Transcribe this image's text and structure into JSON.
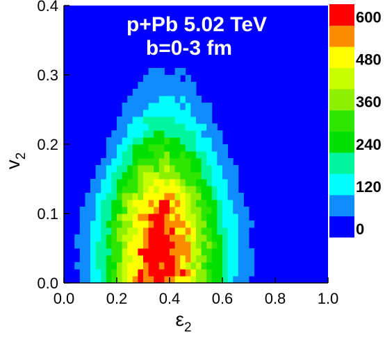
{
  "chart_data": {
    "type": "heatmap",
    "annotation": [
      "p+Pb 5.02 TeV",
      "b=0-3 fm"
    ],
    "xlabel": {
      "main": "ε",
      "sub": "2"
    },
    "ylabel": {
      "main": "v",
      "sub": "2"
    },
    "xlim": [
      0.0,
      1.0
    ],
    "ylim": [
      0.0,
      0.4
    ],
    "xticks": [
      "0.0",
      "0.2",
      "0.4",
      "0.6",
      "0.8",
      "1.0"
    ],
    "yticks": [
      "0.0",
      "0.1",
      "0.2",
      "0.3",
      "0.4"
    ],
    "colorbar": {
      "ticks": [
        "0",
        "120",
        "240",
        "360",
        "480",
        "600"
      ],
      "range": [
        0,
        660
      ],
      "levels": [
        {
          "from": 0,
          "to": 60,
          "color": "#0000ff"
        },
        {
          "from": 60,
          "to": 120,
          "color": "#0f8cff"
        },
        {
          "from": 120,
          "to": 180,
          "color": "#00ffff"
        },
        {
          "from": 180,
          "to": 240,
          "color": "#00f5a0"
        },
        {
          "from": 240,
          "to": 300,
          "color": "#00e000"
        },
        {
          "from": 300,
          "to": 360,
          "color": "#2ee600"
        },
        {
          "from": 360,
          "to": 420,
          "color": "#8cf000"
        },
        {
          "from": 420,
          "to": 480,
          "color": "#c8ff00"
        },
        {
          "from": 480,
          "to": 540,
          "color": "#ffff00"
        },
        {
          "from": 540,
          "to": 600,
          "color": "#ff8c00"
        },
        {
          "from": 600,
          "to": 660,
          "color": "#ff0000"
        }
      ]
    },
    "distribution": {
      "peak_count": 650,
      "peak_epsilon2": 0.36,
      "peak_v2": 0.05,
      "bins_x": 50,
      "bins_y": 40
    }
  }
}
